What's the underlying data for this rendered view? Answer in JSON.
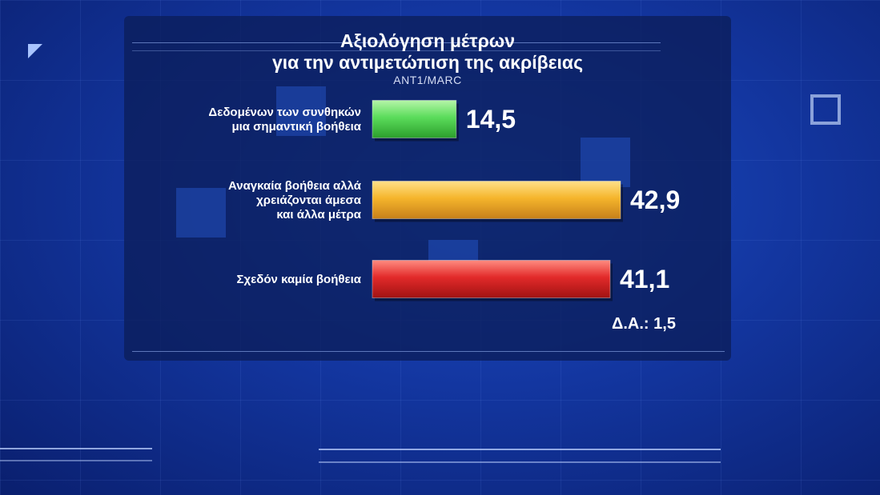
{
  "chart_data": {
    "type": "bar",
    "orientation": "horizontal",
    "title_line1": "Αξιολόγηση μέτρων",
    "title_line2": "για την αντιμετώπιση της ακρίβειας",
    "source": "ANT1/MARC",
    "categories": [
      [
        "Δεδομένων των συνθηκών",
        "μια σημαντική βοήθεια"
      ],
      [
        "Αναγκαία βοήθεια αλλά",
        "χρειάζονται άμεσα",
        "και άλλα μέτρα"
      ],
      [
        "Σχεδόν καμία βοήθεια"
      ]
    ],
    "values": [
      14.5,
      42.9,
      41.1
    ],
    "value_labels": [
      "14,5",
      "42,9",
      "41,1"
    ],
    "colors": [
      "#5bdc5b",
      "#f5b52c",
      "#e22a2a"
    ],
    "na_label": "Δ.Α.: 1,5",
    "xlim": [
      0,
      42.9
    ],
    "grid": false,
    "legend": "none"
  }
}
